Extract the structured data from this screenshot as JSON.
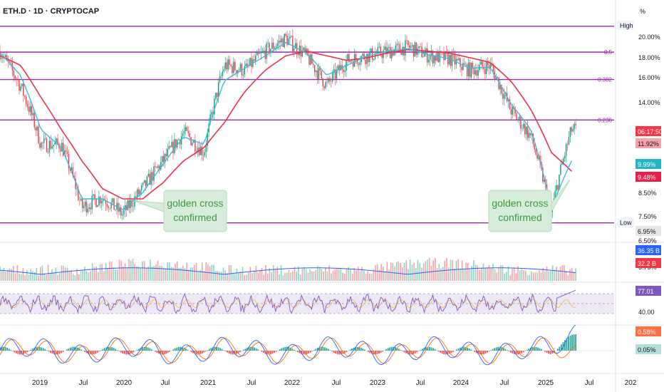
{
  "header": {
    "symbol": "ETH.D · 1D · CRYPTOCAP"
  },
  "chart_data": {
    "type": "line",
    "title": "ETH.D · 1D · CRYPTOCAP",
    "x_ticks": [
      "2019",
      "Jul",
      "2020",
      "Jul",
      "2021",
      "Jul",
      "2022",
      "Jul",
      "2023",
      "Jul",
      "2024",
      "Jul",
      "2025",
      "Jul",
      "202"
    ],
    "y_scale": "log",
    "y_unit": "%",
    "y_ticks": [
      "20.00%",
      "18.00%",
      "16.00%",
      "14.00%",
      "12.00%",
      "10.00%",
      "8.50%",
      "7.50%",
      "6.50%",
      "5.75%"
    ],
    "fib_levels": [
      {
        "label": "High",
        "ratio": null,
        "value": 22.0
      },
      {
        "label": "0.5",
        "ratio": 0.5,
        "value": 18.9
      },
      {
        "label": "0.382",
        "ratio": 0.382,
        "value": 16.1
      },
      {
        "label": "0.236",
        "ratio": 0.236,
        "value": 12.7
      },
      {
        "label": "Low",
        "ratio": null,
        "value": 6.95
      }
    ],
    "price_series": {
      "x": [
        "2018-07",
        "2018-10",
        "2019-01",
        "2019-04",
        "2019-07",
        "2019-10",
        "2020-01",
        "2020-04",
        "2020-07",
        "2020-10",
        "2021-01",
        "2021-04",
        "2021-07",
        "2021-10",
        "2022-01",
        "2022-04",
        "2022-07",
        "2022-10",
        "2023-01",
        "2023-04",
        "2023-07",
        "2023-10",
        "2024-01",
        "2024-04",
        "2024-07",
        "2024-10",
        "2025-01",
        "2025-04",
        "2025-07"
      ],
      "values": [
        19.0,
        15.5,
        11.0,
        11.0,
        7.6,
        8.1,
        7.3,
        8.5,
        10.0,
        11.8,
        10.5,
        17.5,
        17.0,
        19.0,
        20.5,
        18.5,
        15.5,
        18.0,
        18.5,
        19.0,
        19.5,
        18.5,
        18.2,
        17.0,
        17.5,
        13.5,
        11.5,
        7.3,
        12.0
      ]
    },
    "ma_fast": {
      "values": [
        18.8,
        16.5,
        12.0,
        10.8,
        8.0,
        8.0,
        7.5,
        8.3,
        9.8,
        11.5,
        11.0,
        16.0,
        17.2,
        18.5,
        20.0,
        18.8,
        16.5,
        17.5,
        18.5,
        19.0,
        19.3,
        18.6,
        18.2,
        17.2,
        17.3,
        14.0,
        12.0,
        7.5,
        10.0
      ]
    },
    "ma_slow": {
      "values": [
        18.5,
        17.5,
        14.5,
        12.0,
        10.0,
        8.5,
        8.0,
        8.0,
        8.8,
        10.0,
        10.8,
        12.5,
        15.0,
        17.0,
        18.5,
        19.0,
        18.5,
        18.0,
        18.3,
        18.8,
        19.2,
        19.0,
        18.8,
        18.3,
        17.8,
        16.0,
        13.5,
        10.5,
        9.4
      ]
    },
    "annotations": [
      {
        "text": "golden cross\nconfirmed",
        "x": "2020-02"
      },
      {
        "text": "golden cross\nconfirmed",
        "x": "2025-03"
      }
    ],
    "price_badges": [
      {
        "text": "06:17:50",
        "color": "#f23645"
      },
      {
        "text": "11.92%",
        "color": "#f7a1a9"
      },
      {
        "text": "9.99%",
        "color": "#22b5c4"
      },
      {
        "text": "9.48%",
        "color": "#e91e4a"
      },
      {
        "text": "6.95%",
        "color": "#e6e6e6"
      }
    ],
    "volume_panel": {
      "tick_labels": [
        "36.35 B",
        "32.2 B"
      ],
      "badge_colors": [
        "#2962ff",
        "#f23645"
      ]
    },
    "rsi_panel": {
      "value": "77.01",
      "tick_label": "40.00",
      "badge_color": "#7e57c2"
    },
    "macd_panel": {
      "values": [
        "0.58%",
        "0.05%"
      ],
      "badge_colors": [
        "#ff7043",
        "#b2dfdb"
      ]
    },
    "colors": {
      "up": "#089981",
      "down": "#f23645",
      "ma_fast": "#3fb8d6",
      "ma_slow": "#e8334a",
      "fib": "#9c27b0",
      "volume_ma": "#2962ff",
      "rsi": "#7e57c2",
      "rsi_band": "#ede7f6",
      "macd": "#2962ff",
      "signal": "#ff6d00"
    }
  }
}
